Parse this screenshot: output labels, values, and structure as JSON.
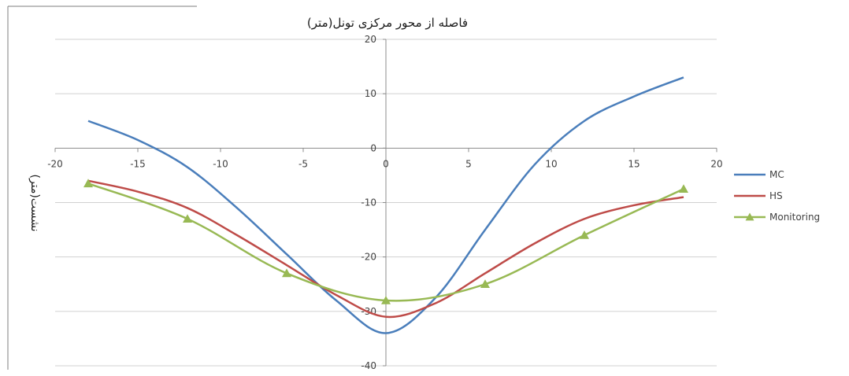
{
  "chart_data": {
    "type": "line",
    "title": "فاصله از محور مرکزی تونل(متر)",
    "xlabel": "",
    "ylabel": "نشست(متر)",
    "xlim": [
      -20,
      20
    ],
    "ylim": [
      -40,
      20
    ],
    "x_ticks": [
      -20,
      -15,
      -10,
      -5,
      0,
      5,
      10,
      15,
      20
    ],
    "y_ticks": [
      20,
      10,
      0,
      -10,
      -20,
      -30,
      -40
    ],
    "grid": true,
    "legend_position": "right",
    "series": [
      {
        "name": "MC",
        "color": "#4a7ebb",
        "marker": "none",
        "x": [
          -18,
          -15,
          -12,
          -9,
          -6,
          -3,
          0,
          3,
          6,
          9,
          12,
          15,
          18
        ],
        "y": [
          5,
          1.5,
          -3.5,
          -11,
          -19.5,
          -28,
          -34,
          -27.5,
          -15,
          -3,
          5,
          9.5,
          13
        ]
      },
      {
        "name": "HS",
        "color": "#be4b48",
        "marker": "none",
        "x": [
          -18,
          -15,
          -12,
          -9,
          -6,
          -3,
          0,
          3,
          6,
          9,
          12,
          15,
          18
        ],
        "y": [
          -6,
          -8,
          -11,
          -16,
          -21.5,
          -27,
          -31,
          -28.5,
          -23,
          -17.5,
          -13,
          -10.5,
          -9
        ]
      },
      {
        "name": "Monitoring",
        "color": "#98b954",
        "marker": "triangle",
        "x": [
          -18,
          -12,
          -6,
          0,
          6,
          12,
          18
        ],
        "y": [
          -6.5,
          -13,
          -23,
          -28,
          -25,
          -16,
          -7.5
        ]
      }
    ]
  }
}
